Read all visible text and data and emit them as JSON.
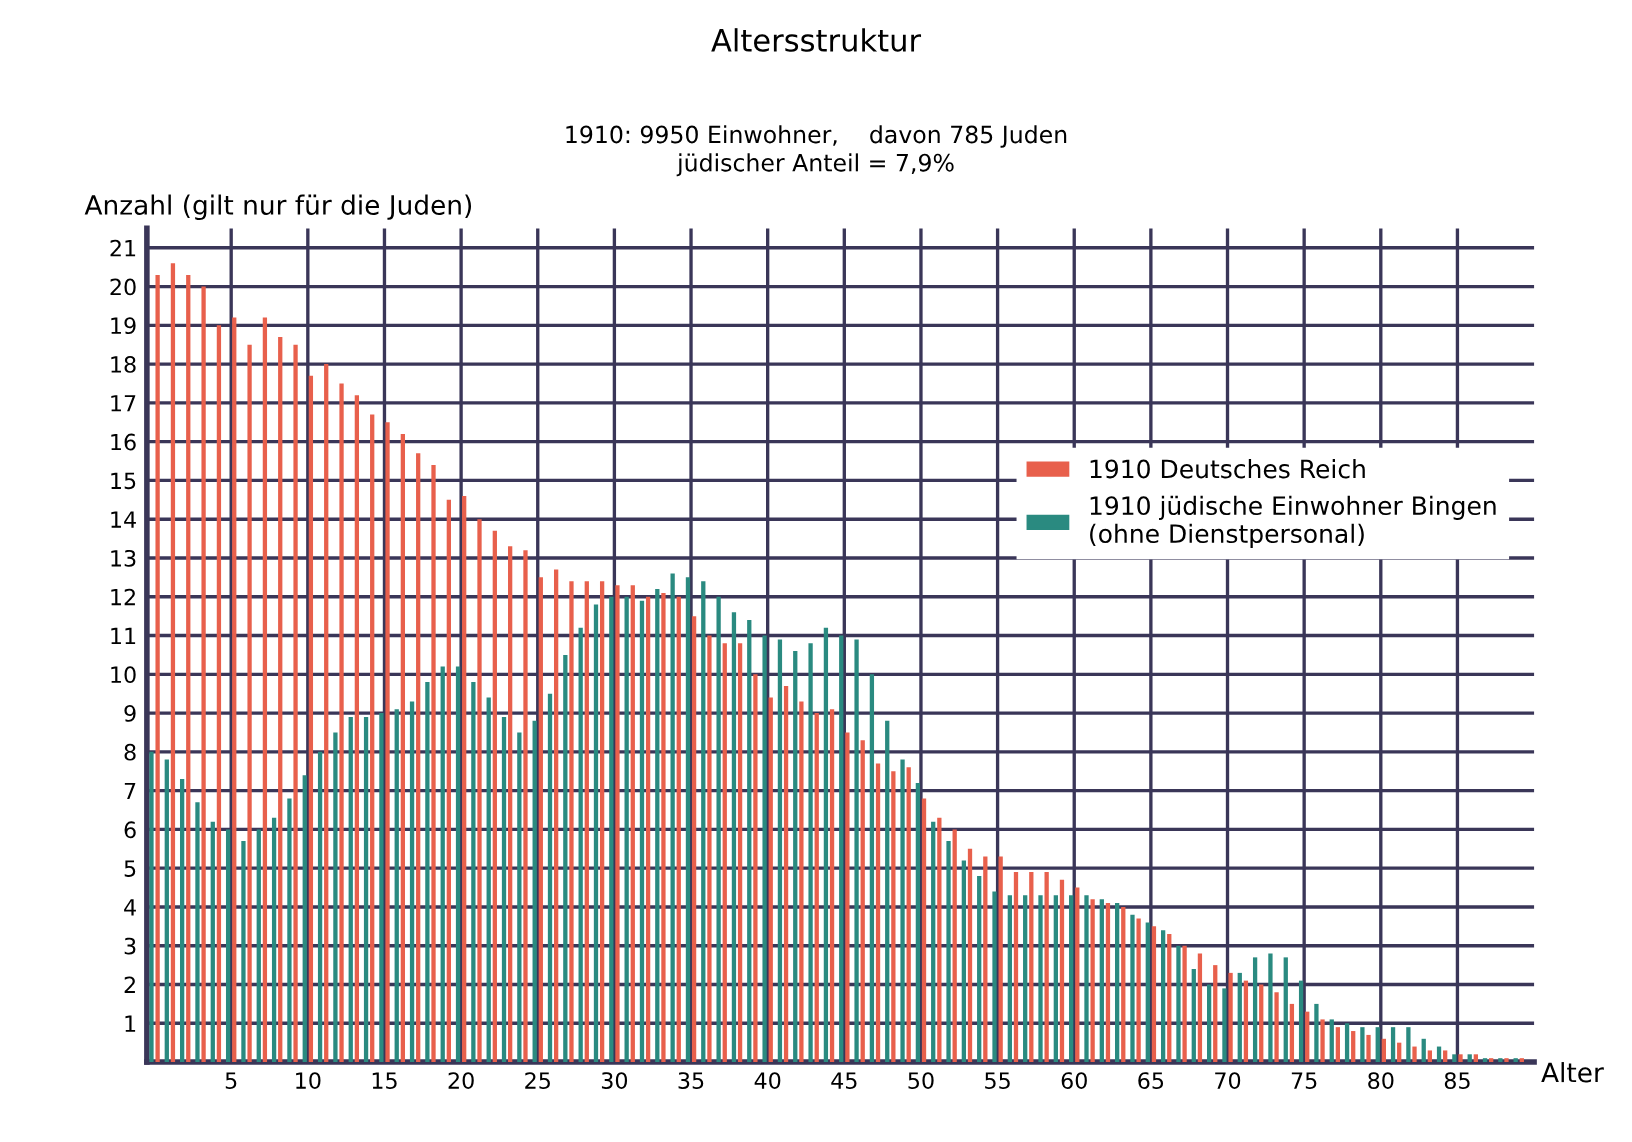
{
  "chart_data": {
    "type": "bar",
    "title": "Altersstruktur",
    "subtitle": "1910: 9950 Einwohner,    davon 785 Juden\njüdischer Anteil = 7,9%",
    "xlabel": "Alter",
    "ylabel": "Anzahl (gilt nur für die Juden)",
    "x": [
      0,
      1,
      2,
      3,
      4,
      5,
      6,
      7,
      8,
      9,
      10,
      11,
      12,
      13,
      14,
      15,
      16,
      17,
      18,
      19,
      20,
      21,
      22,
      23,
      24,
      25,
      26,
      27,
      28,
      29,
      30,
      31,
      32,
      33,
      34,
      35,
      36,
      37,
      38,
      39,
      40,
      41,
      42,
      43,
      44,
      45,
      46,
      47,
      48,
      49,
      50,
      51,
      52,
      53,
      54,
      55,
      56,
      57,
      58,
      59,
      60,
      61,
      62,
      63,
      64,
      65,
      66,
      67,
      68,
      69,
      70,
      71,
      72,
      73,
      74,
      75,
      76,
      77,
      78,
      79,
      80,
      81,
      82,
      83,
      84,
      85,
      86,
      87,
      88,
      89
    ],
    "series": [
      {
        "name": "1910 Deutsches Reich",
        "color": "#e8604c",
        "values": [
          20.3,
          20.6,
          20.3,
          20.0,
          19.0,
          19.2,
          18.5,
          19.2,
          18.7,
          18.5,
          17.7,
          18.0,
          17.5,
          17.2,
          16.7,
          16.5,
          16.2,
          15.7,
          15.4,
          14.5,
          14.6,
          14.0,
          13.7,
          13.3,
          13.2,
          12.5,
          12.7,
          12.4,
          12.4,
          12.4,
          12.3,
          12.3,
          12.0,
          12.1,
          12.0,
          11.5,
          11.0,
          10.8,
          10.8,
          10.0,
          9.4,
          9.7,
          9.3,
          9.0,
          9.1,
          8.5,
          8.3,
          7.7,
          7.5,
          7.6,
          6.8,
          6.3,
          6.0,
          5.5,
          5.3,
          5.3,
          4.9,
          4.9,
          4.9,
          4.7,
          4.5,
          4.2,
          4.1,
          4.0,
          3.7,
          3.5,
          3.3,
          3.0,
          2.8,
          2.5,
          2.3,
          2.1,
          2.0,
          1.8,
          1.5,
          1.3,
          1.1,
          0.9,
          0.8,
          0.7,
          0.6,
          0.5,
          0.4,
          0.3,
          0.3,
          0.2,
          0.2,
          0.1,
          0.1,
          0.1
        ]
      },
      {
        "name": "1910 jüdische Einwohner Bingen\n(ohne Dienstpersonal)",
        "color": "#2a8a80",
        "values": [
          8.0,
          7.8,
          7.3,
          6.7,
          6.2,
          6.0,
          5.7,
          6.0,
          6.3,
          6.8,
          7.4,
          8.0,
          8.5,
          8.9,
          8.9,
          9.0,
          9.1,
          9.3,
          9.8,
          10.2,
          10.2,
          9.8,
          9.4,
          8.9,
          8.5,
          8.8,
          9.5,
          10.5,
          11.2,
          11.8,
          12.0,
          12.0,
          11.9,
          12.2,
          12.6,
          12.5,
          12.4,
          12.0,
          11.6,
          11.4,
          11.0,
          10.9,
          10.6,
          10.8,
          11.2,
          11.0,
          10.9,
          10.0,
          8.8,
          7.8,
          7.2,
          6.2,
          5.7,
          5.2,
          4.8,
          4.4,
          4.3,
          4.3,
          4.3,
          4.3,
          4.3,
          4.3,
          4.2,
          4.1,
          3.8,
          3.6,
          3.4,
          3.0,
          2.4,
          2.0,
          1.9,
          2.3,
          2.7,
          2.8,
          2.7,
          2.1,
          1.5,
          1.1,
          1.0,
          0.9,
          0.9,
          0.9,
          0.9,
          0.6,
          0.4,
          0.2,
          0.2,
          0.1,
          0.1,
          0.1
        ]
      }
    ],
    "xlim": [
      -0.5,
      90
    ],
    "ylim": [
      0,
      21.5
    ],
    "xticks": [
      5,
      10,
      15,
      20,
      25,
      30,
      35,
      40,
      45,
      50,
      55,
      60,
      65,
      70,
      75,
      80,
      85
    ],
    "yticks": [
      1,
      2,
      3,
      4,
      5,
      6,
      7,
      8,
      9,
      10,
      11,
      12,
      13,
      14,
      15,
      16,
      17,
      18,
      19,
      20,
      21
    ],
    "grid": true,
    "legend": "right"
  }
}
